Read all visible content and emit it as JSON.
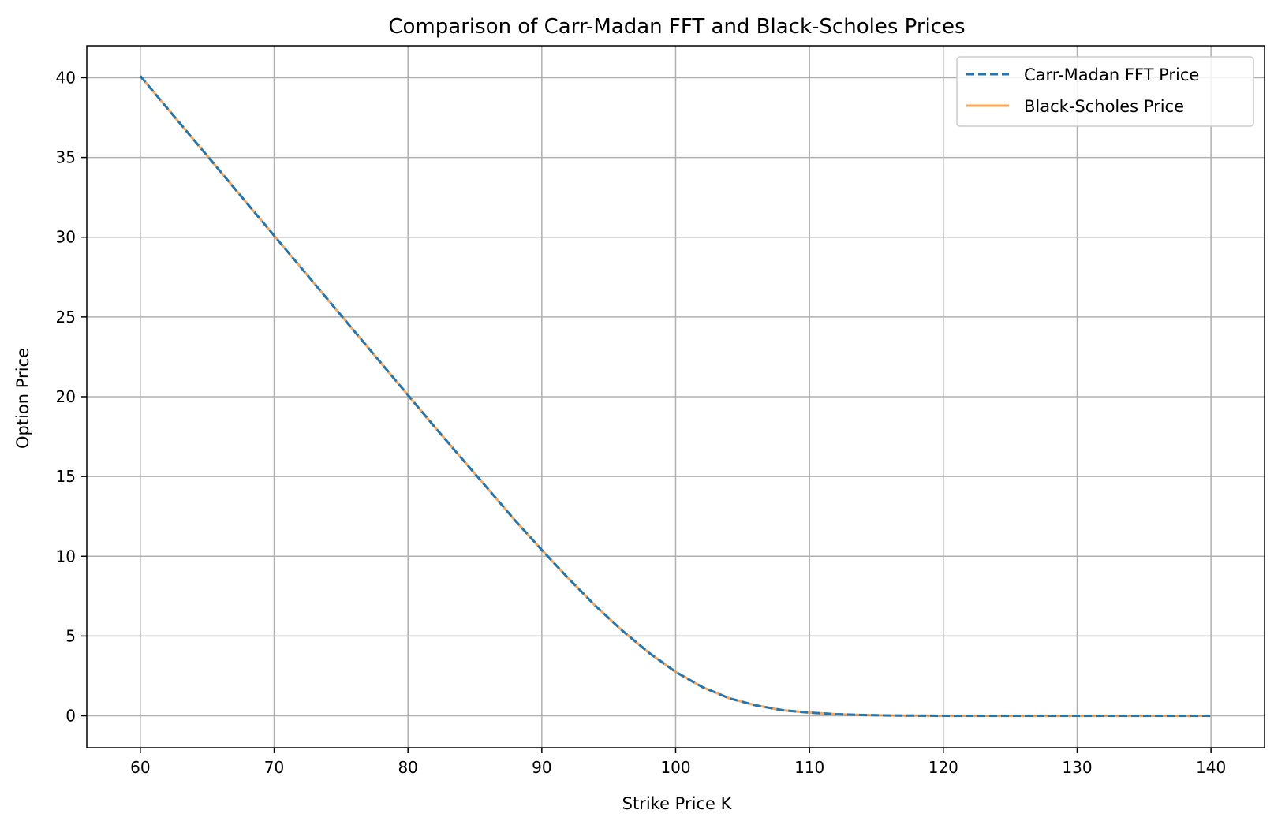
{
  "chart_data": {
    "type": "line",
    "title": "Comparison of Carr-Madan FFT and Black-Scholes Prices",
    "xlabel": "Strike Price K",
    "ylabel": "Option Price",
    "xlim": [
      56,
      144
    ],
    "ylim": [
      -2,
      42
    ],
    "xticks": [
      60,
      70,
      80,
      90,
      100,
      110,
      120,
      130,
      140
    ],
    "yticks": [
      0,
      5,
      10,
      15,
      20,
      25,
      30,
      35,
      40
    ],
    "grid": true,
    "legend_position": "top-right",
    "x": [
      60,
      62,
      64,
      66,
      68,
      70,
      72,
      74,
      76,
      78,
      80,
      82,
      84,
      86,
      88,
      90,
      92,
      94,
      96,
      98,
      100,
      102,
      104,
      106,
      108,
      110,
      112,
      114,
      116,
      118,
      120,
      125,
      130,
      135,
      140
    ],
    "series": [
      {
        "name": "Carr-Madan FFT Price",
        "color": "#1f77b4",
        "style": "dashed",
        "values": [
          40.1,
          38.1,
          36.1,
          34.1,
          32.1,
          30.1,
          28.1,
          26.1,
          24.1,
          22.1,
          20.1,
          18.1,
          16.15,
          14.2,
          12.25,
          10.4,
          8.6,
          6.9,
          5.35,
          3.95,
          2.75,
          1.8,
          1.1,
          0.65,
          0.35,
          0.2,
          0.1,
          0.05,
          0.02,
          0.01,
          0.0,
          0.0,
          0.0,
          0.0,
          0.0
        ]
      },
      {
        "name": "Black-Scholes Price",
        "color": "#ff7f0e",
        "style": "solid",
        "values": [
          40.1,
          38.1,
          36.1,
          34.1,
          32.1,
          30.1,
          28.1,
          26.1,
          24.1,
          22.1,
          20.1,
          18.1,
          16.15,
          14.2,
          12.25,
          10.4,
          8.6,
          6.9,
          5.35,
          3.95,
          2.75,
          1.8,
          1.1,
          0.65,
          0.35,
          0.2,
          0.1,
          0.05,
          0.02,
          0.01,
          0.0,
          0.0,
          0.0,
          0.0,
          0.0
        ]
      }
    ]
  }
}
